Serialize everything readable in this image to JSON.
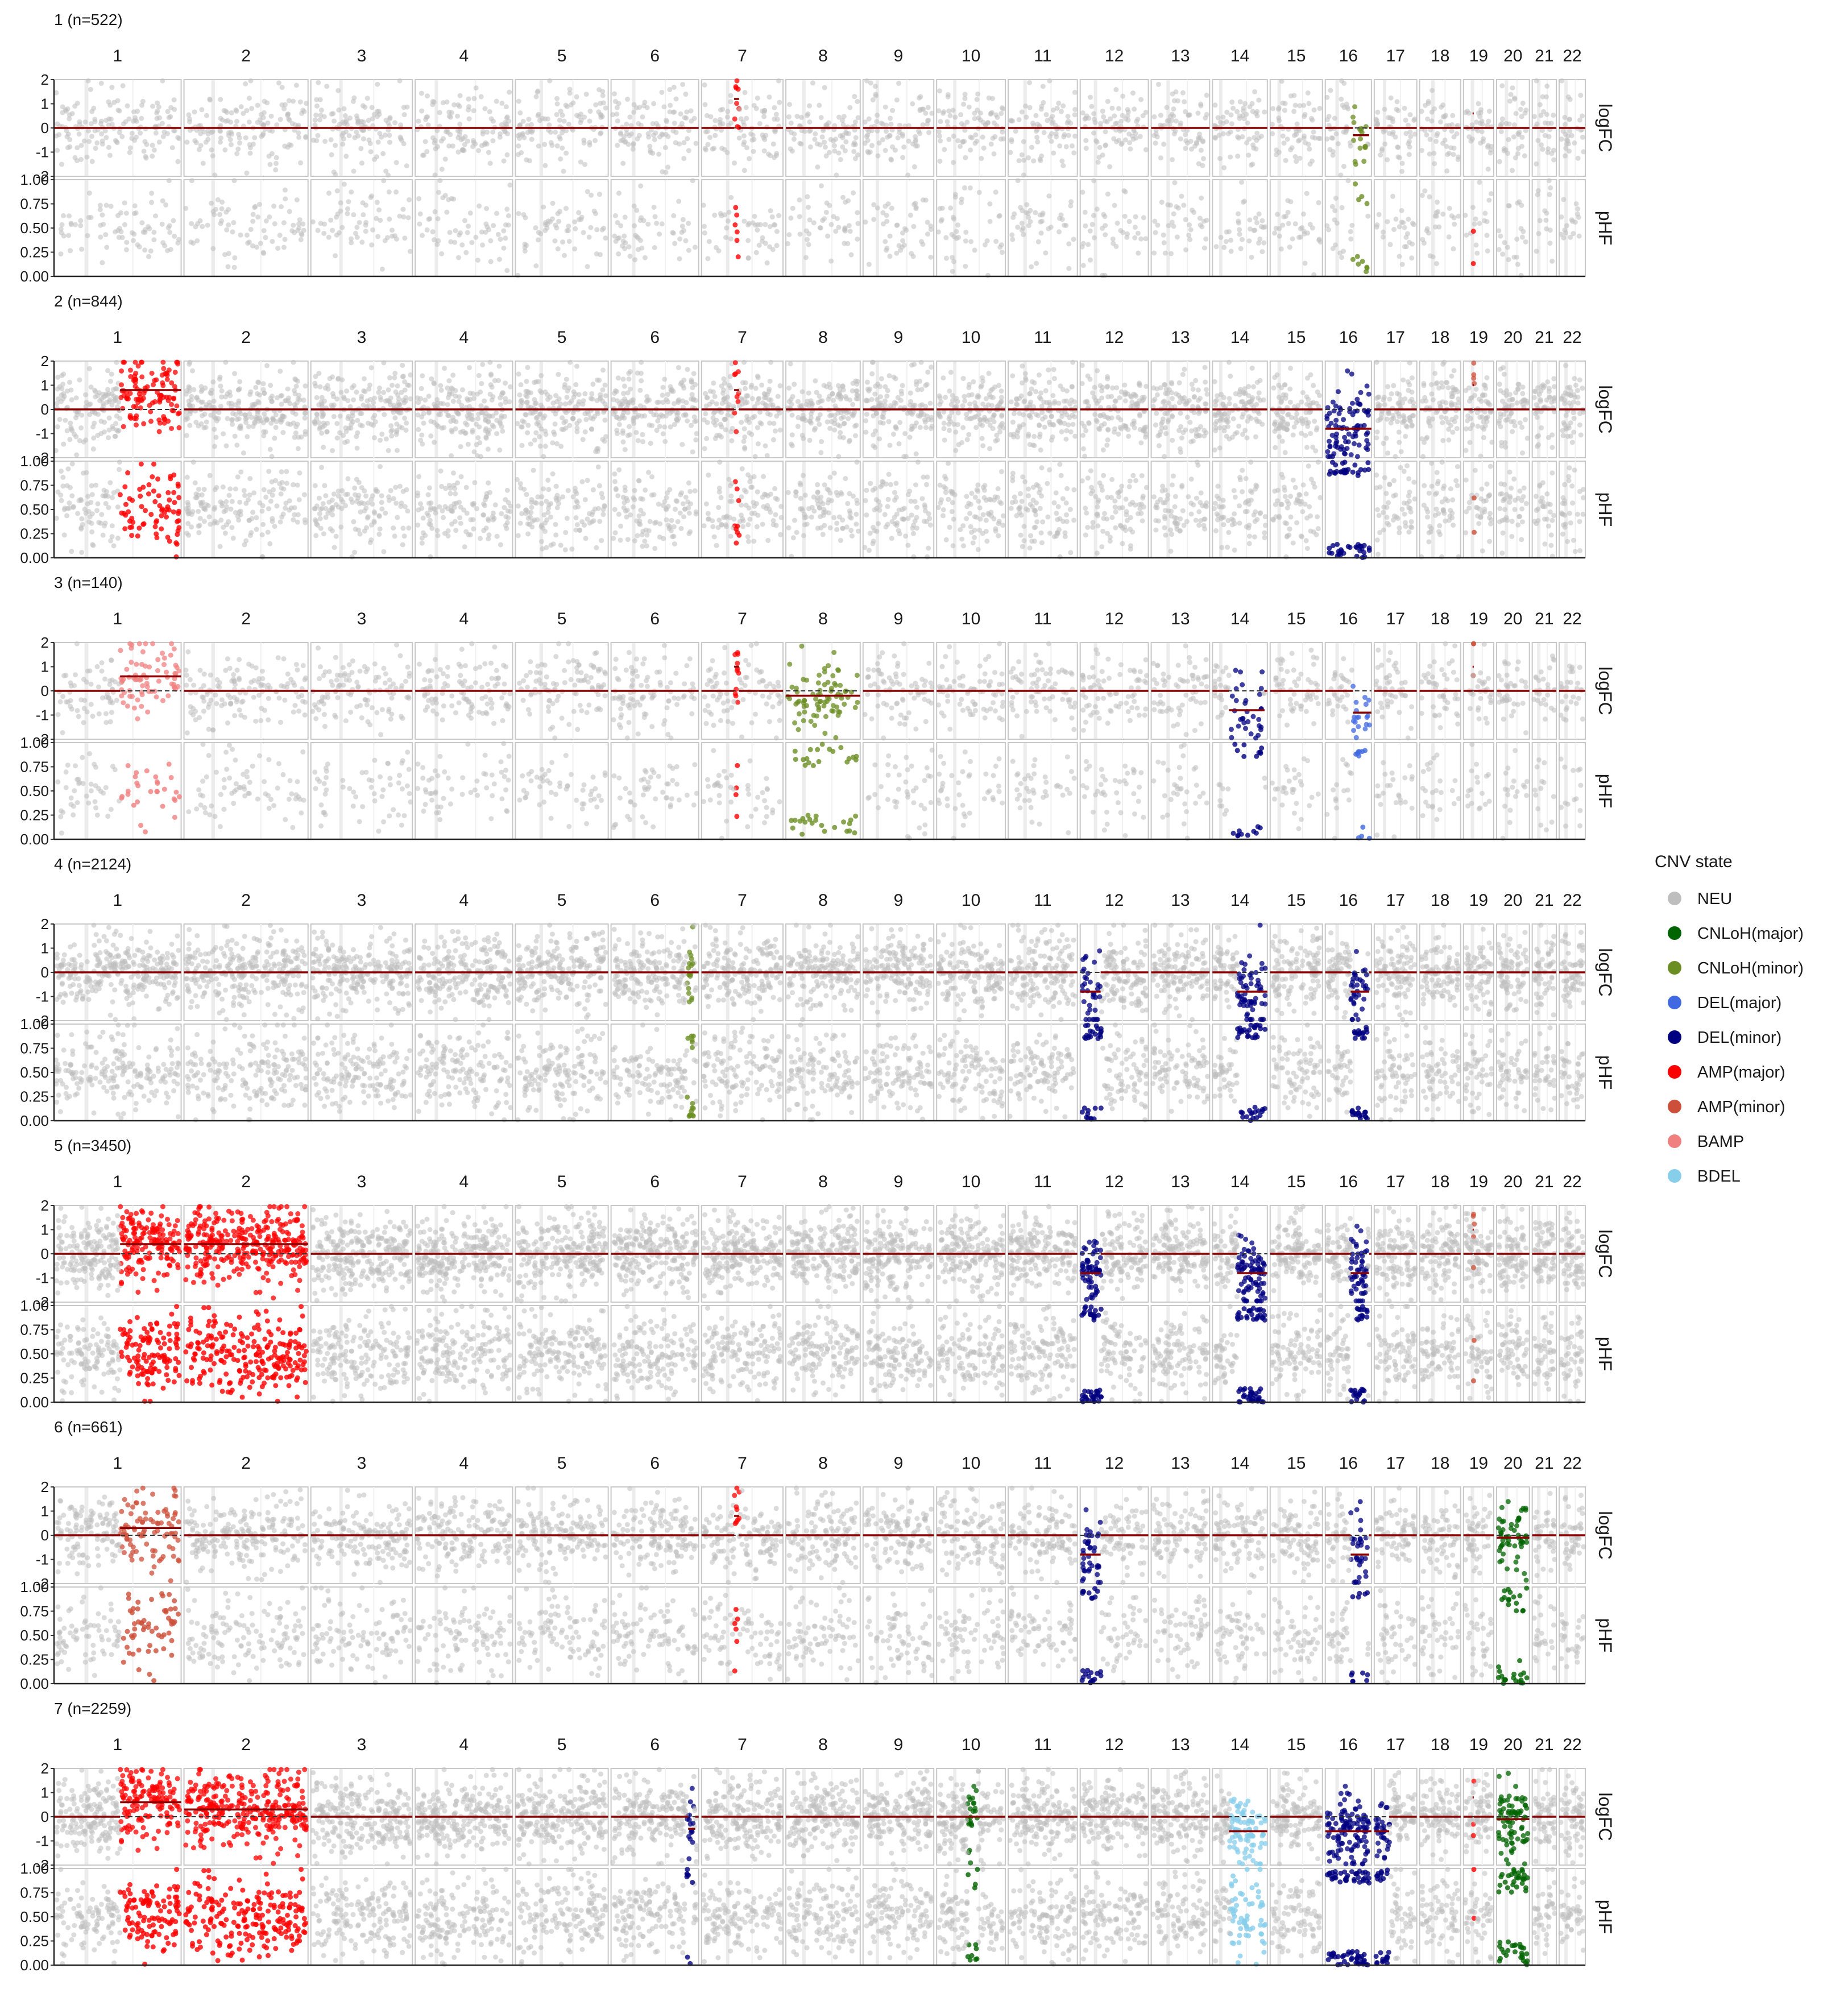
{
  "chart_data": {
    "type": "scatter",
    "x_label": "",
    "chromosomes": [
      "1",
      "2",
      "3",
      "4",
      "5",
      "6",
      "7",
      "8",
      "9",
      "10",
      "11",
      "12",
      "13",
      "14",
      "15",
      "16",
      "17",
      "18",
      "19",
      "20",
      "21",
      "22"
    ],
    "chrom_relative_lengths": [
      248,
      242,
      198,
      190,
      181,
      171,
      159,
      145,
      138,
      134,
      135,
      133,
      114,
      107,
      102,
      90,
      83,
      80,
      59,
      64,
      47,
      51
    ],
    "facet_y_labels": {
      "logFC": "logFC",
      "pHF": "pHF"
    },
    "logFC_axis": {
      "ylim": [
        -2,
        2
      ],
      "ticks": [
        "2",
        "1",
        "0",
        "-1",
        "-2"
      ]
    },
    "pHF_axis": {
      "ylim": [
        0,
        1
      ],
      "ticks": [
        "1.00",
        "0.75",
        "0.50",
        "0.25",
        "0.00"
      ]
    },
    "legend": {
      "title": "CNV state",
      "position": "right",
      "entries": [
        {
          "state": "NEU",
          "color": "#bebebe"
        },
        {
          "state": "CNLoH(major)",
          "color": "#006400"
        },
        {
          "state": "CNLoH(minor)",
          "color": "#6b8e23"
        },
        {
          "state": "DEL(major)",
          "color": "#4169e1"
        },
        {
          "state": "DEL(minor)",
          "color": "#000080"
        },
        {
          "state": "AMP(major)",
          "color": "#ff0000"
        },
        {
          "state": "AMP(minor)",
          "color": "#cd4f39"
        },
        {
          "state": "BAMP",
          "color": "#f08080"
        },
        {
          "state": "BDEL",
          "color": "#87ceeb"
        }
      ]
    },
    "clones": [
      {
        "label": "1 (n=522)",
        "density": 0.25,
        "events": [
          {
            "chr": "7",
            "start": 0.4,
            "end": 0.46,
            "state": "AMP(major)",
            "seg": 1.2
          },
          {
            "chr": "16",
            "start": 0.6,
            "end": 0.95,
            "state": "CNLoH(minor)",
            "seg": -0.3
          },
          {
            "chr": "19",
            "start": 0.3,
            "end": 0.34,
            "state": "AMP(major)",
            "seg": 0.6
          }
        ]
      },
      {
        "label": "2 (n=844)",
        "density": 0.6,
        "events": [
          {
            "chr": "1",
            "start": 0.52,
            "end": 1.0,
            "state": "AMP(major)",
            "seg": 0.8
          },
          {
            "chr": "7",
            "start": 0.4,
            "end": 0.46,
            "state": "AMP(major)",
            "seg": 0.8
          },
          {
            "chr": "16",
            "start": 0.0,
            "end": 1.0,
            "state": "DEL(minor)",
            "seg": -0.8
          },
          {
            "chr": "19",
            "start": 0.3,
            "end": 0.34,
            "state": "AMP(minor)",
            "seg": 1.0
          }
        ]
      },
      {
        "label": "3 (n=140)",
        "density": 0.2,
        "events": [
          {
            "chr": "1",
            "start": 0.52,
            "end": 1.0,
            "state": "BAMP",
            "seg": 0.6
          },
          {
            "chr": "7",
            "start": 0.4,
            "end": 0.46,
            "state": "AMP(major)",
            "seg": 1.0
          },
          {
            "chr": "8",
            "start": 0.0,
            "end": 1.0,
            "state": "CNLoH(minor)",
            "seg": -0.2
          },
          {
            "chr": "14",
            "start": 0.3,
            "end": 0.95,
            "state": "DEL(minor)",
            "seg": -0.8
          },
          {
            "chr": "16",
            "start": 0.6,
            "end": 1.0,
            "state": "DEL(major)",
            "seg": -0.9
          },
          {
            "chr": "19",
            "start": 0.3,
            "end": 0.34,
            "state": "AMP(minor)",
            "seg": 1.0
          }
        ]
      },
      {
        "label": "4 (n=2124)",
        "density": 0.8,
        "events": [
          {
            "chr": "6",
            "start": 0.88,
            "end": 0.96,
            "state": "CNLoH(minor)",
            "seg": 0.0
          },
          {
            "chr": "12",
            "start": 0.0,
            "end": 0.3,
            "state": "DEL(minor)",
            "seg": -0.8
          },
          {
            "chr": "14",
            "start": 0.45,
            "end": 1.0,
            "state": "DEL(minor)",
            "seg": -0.8
          },
          {
            "chr": "16",
            "start": 0.55,
            "end": 0.95,
            "state": "DEL(minor)",
            "seg": -0.8
          }
        ]
      },
      {
        "label": "5 (n=3450)",
        "density": 1.0,
        "events": [
          {
            "chr": "1",
            "start": 0.52,
            "end": 1.0,
            "state": "AMP(major)",
            "seg": 0.4
          },
          {
            "chr": "2",
            "start": 0.0,
            "end": 1.0,
            "state": "AMP(major)",
            "seg": 0.4
          },
          {
            "chr": "12",
            "start": 0.0,
            "end": 0.3,
            "state": "DEL(minor)",
            "seg": -0.8
          },
          {
            "chr": "14",
            "start": 0.45,
            "end": 1.0,
            "state": "DEL(minor)",
            "seg": -0.8
          },
          {
            "chr": "16",
            "start": 0.55,
            "end": 0.95,
            "state": "DEL(minor)",
            "seg": -0.8
          },
          {
            "chr": "19",
            "start": 0.3,
            "end": 0.34,
            "state": "AMP(minor)",
            "seg": 1.0
          }
        ]
      },
      {
        "label": "6 (n=661)",
        "density": 0.5,
        "events": [
          {
            "chr": "1",
            "start": 0.52,
            "end": 1.0,
            "state": "AMP(minor)",
            "seg": 0.3
          },
          {
            "chr": "7",
            "start": 0.4,
            "end": 0.46,
            "state": "AMP(major)",
            "seg": 0.8
          },
          {
            "chr": "12",
            "start": 0.0,
            "end": 0.3,
            "state": "DEL(minor)",
            "seg": -0.8
          },
          {
            "chr": "16",
            "start": 0.55,
            "end": 0.95,
            "state": "DEL(minor)",
            "seg": -0.8
          },
          {
            "chr": "20",
            "start": 0.0,
            "end": 1.0,
            "state": "CNLoH(major)",
            "seg": -0.1
          }
        ]
      },
      {
        "label": "7 (n=2259)",
        "density": 0.9,
        "events": [
          {
            "chr": "1",
            "start": 0.52,
            "end": 1.0,
            "state": "AMP(major)",
            "seg": 0.6
          },
          {
            "chr": "2",
            "start": 0.0,
            "end": 1.0,
            "state": "AMP(major)",
            "seg": 0.3
          },
          {
            "chr": "6",
            "start": 0.88,
            "end": 0.96,
            "state": "DEL(minor)",
            "seg": -0.5
          },
          {
            "chr": "10",
            "start": 0.45,
            "end": 0.6,
            "state": "CNLoH(major)",
            "seg": 0.0
          },
          {
            "chr": "14",
            "start": 0.3,
            "end": 1.0,
            "state": "BDEL",
            "seg": -0.6
          },
          {
            "chr": "16",
            "start": 0.0,
            "end": 1.0,
            "state": "DEL(minor)",
            "seg": -0.6
          },
          {
            "chr": "17",
            "start": 0.0,
            "end": 0.35,
            "state": "DEL(minor)",
            "seg": -0.6
          },
          {
            "chr": "19",
            "start": 0.3,
            "end": 0.34,
            "state": "AMP(major)",
            "seg": 0.8
          },
          {
            "chr": "20",
            "start": 0.0,
            "end": 1.0,
            "state": "CNLoH(major)",
            "seg": -0.1
          }
        ]
      }
    ]
  }
}
